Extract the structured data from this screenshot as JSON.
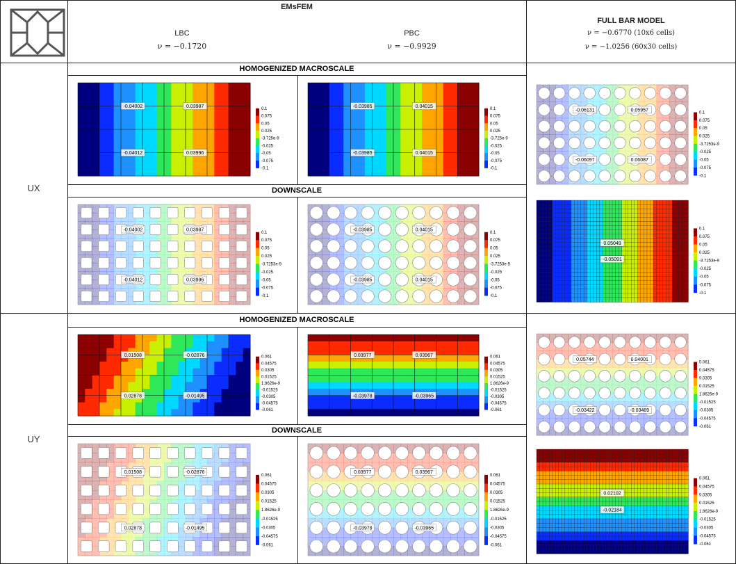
{
  "header": {
    "method": "EMsFEM",
    "lbc_label": "LBC",
    "lbc_nu": "ν = −0.1720",
    "pbc_label": "PBC",
    "pbc_nu": "ν = −0.9929",
    "full_title": "FULL BAR MODEL",
    "full_nu": [
      "ν = −0.6770 (10x6 cells)",
      "ν = −1.0256 (60x30 cells)"
    ]
  },
  "rows": [
    {
      "label": "UX",
      "sections": [
        "HOMOGENIZED MACROSCALE",
        "DOWNSCALE"
      ],
      "panels": [
        {
          "probes": [
            "-0.04002",
            "0.03987",
            "-0.04012",
            "0.03996"
          ],
          "legend": [
            "0.1",
            "0.075",
            "0.05",
            "0.025",
            "-3.725e-9",
            "-0.025",
            "-0.05",
            "-0.075",
            "-0.1"
          ]
        },
        {
          "probes": [
            "-0.03985",
            "0.04015",
            "-0.03985",
            "0.04015"
          ],
          "legend": [
            "0.1",
            "0.075",
            "0.05",
            "0.025",
            "-3.725e-9",
            "-0.025",
            "-0.05",
            "-0.075",
            "-0.1"
          ]
        },
        {
          "probes": [
            "-0.04002",
            "0.03987",
            "-0.04012",
            "0.03996"
          ],
          "legend": [
            "0.1",
            "0.075",
            "0.05",
            "0.025",
            "-3.7253e-9",
            "-0.025",
            "-0.05",
            "-0.075",
            "-0.1"
          ]
        },
        {
          "probes": [
            "-0.03985",
            "0.04015",
            "-0.03985",
            "0.04015"
          ],
          "legend": [
            "0.1",
            "0.075",
            "0.05",
            "0.025",
            "-3.7253e-9",
            "-0.025",
            "-0.05",
            "-0.075",
            "-0.1"
          ]
        },
        {
          "probes": [
            "-0.06131",
            "0.05957",
            "-0.06097",
            "0.06087"
          ],
          "legend": [
            "0.1",
            "0.075",
            "0.05",
            "0.025",
            "-3.7253e-9",
            "-0.025",
            "-0.05",
            "-0.075",
            "-0.1"
          ]
        },
        {
          "probes": [
            "0.05049",
            "-0.05091"
          ],
          "legend": [
            "0.1",
            "0.075",
            "0.05",
            "0.025",
            "-3.7253e-9",
            "-0.025",
            "-0.05",
            "-0.075",
            "-0.1"
          ]
        }
      ]
    },
    {
      "label": "UY",
      "sections": [
        "HOMOGENIZED MACROSCALE",
        "DOWNSCALE"
      ],
      "panels": [
        {
          "probes": [
            "0.01508",
            "-0.02876",
            "0.02878",
            "-0.01495"
          ],
          "legend": [
            "0.061",
            "0.04575",
            "0.0305",
            "0.01525",
            "1.8626e-9",
            "-0.01525",
            "-0.0305",
            "-0.04575",
            "-0.061"
          ]
        },
        {
          "probes": [
            "0.03977",
            "0.03967",
            "-0.03978",
            "-0.03965"
          ],
          "legend": [
            "0.061",
            "0.04575",
            "0.0305",
            "0.01525",
            "1.8626e-9",
            "-0.01525",
            "-0.0305",
            "-0.04575",
            "-0.061"
          ]
        },
        {
          "probes": [
            "0.01508",
            "-0.02876",
            "0.02878",
            "-0.01495"
          ],
          "legend": [
            "0.061",
            "0.04575",
            "0.0305",
            "0.01525",
            "1.8626e-9",
            "-0.01525",
            "-0.0305",
            "-0.04575",
            "-0.061"
          ]
        },
        {
          "probes": [
            "0.03977",
            "0.03967",
            "-0.03978",
            "-0.03965"
          ],
          "legend": [
            "0.061",
            "0.04575",
            "0.0305",
            "0.01525",
            "1.8626e-9",
            "-0.01525",
            "-0.0305",
            "-0.04575",
            "-0.061"
          ]
        },
        {
          "probes": [
            "0.05744",
            "0.04001",
            "-0.03422",
            "-0.03489"
          ],
          "legend": [
            "0.061",
            "0.04575",
            "0.0305",
            "0.01525",
            "1.8626e-9",
            "-0.01525",
            "-0.0305",
            "-0.04575",
            "-0.061"
          ]
        },
        {
          "probes": [
            "0.02102",
            "-0.02184"
          ],
          "legend": [
            "0.061",
            "0.04575",
            "0.0305",
            "0.01525",
            "1.8626e-9",
            "-0.01525",
            "-0.0305",
            "-0.04575",
            "-0.061"
          ]
        }
      ]
    }
  ]
}
